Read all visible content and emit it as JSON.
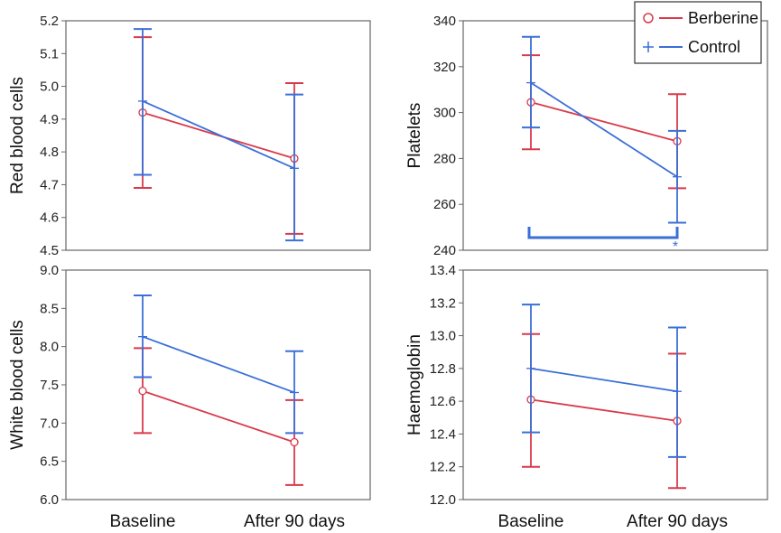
{
  "colors": {
    "berberine": "#d93a4a",
    "control": "#3a6fd8",
    "frame": "#666666"
  },
  "legend": [
    {
      "name": "Berberine",
      "marker": "circle"
    },
    {
      "name": "Control",
      "marker": "plus"
    }
  ],
  "chart_data": [
    {
      "type": "line",
      "id": "rbc",
      "ylabel": "Red blood cells",
      "categories": [
        "Baseline",
        "After 90 days"
      ],
      "ylim": [
        4.5,
        5.2
      ],
      "yticks": [
        "4.5",
        "4.6",
        "4.7",
        "4.8",
        "4.9",
        "5.0",
        "5.1",
        "5.2"
      ],
      "series": [
        {
          "name": "Berberine",
          "values": [
            4.92,
            4.78
          ],
          "lower": [
            4.69,
            4.55
          ],
          "upper": [
            5.15,
            5.01
          ]
        },
        {
          "name": "Control",
          "values": [
            4.955,
            4.75
          ],
          "lower": [
            4.73,
            4.53
          ],
          "upper": [
            5.175,
            4.975
          ]
        }
      ]
    },
    {
      "type": "line",
      "id": "platelets",
      "ylabel": "Platelets",
      "categories": [
        "Baseline",
        "After 90 days"
      ],
      "ylim": [
        240,
        340
      ],
      "yticks": [
        "240",
        "260",
        "280",
        "300",
        "320",
        "340"
      ],
      "series": [
        {
          "name": "Berberine",
          "values": [
            304.5,
            287.5
          ],
          "lower": [
            284,
            267
          ],
          "upper": [
            325,
            308
          ]
        },
        {
          "name": "Control",
          "values": [
            313,
            272
          ],
          "lower": [
            293.5,
            252
          ],
          "upper": [
            333,
            292
          ]
        }
      ],
      "annotation": "*"
    },
    {
      "type": "line",
      "id": "wbc",
      "ylabel": "White blood cells",
      "categories": [
        "Baseline",
        "After 90 days"
      ],
      "ylim": [
        6.0,
        9.0
      ],
      "yticks": [
        "6.0",
        "6.5",
        "7.0",
        "7.5",
        "8.0",
        "8.5",
        "9.0"
      ],
      "series": [
        {
          "name": "Berberine",
          "values": [
            7.42,
            6.75
          ],
          "lower": [
            6.87,
            6.19
          ],
          "upper": [
            7.98,
            7.3
          ]
        },
        {
          "name": "Control",
          "values": [
            8.13,
            7.4
          ],
          "lower": [
            7.6,
            6.87
          ],
          "upper": [
            8.67,
            7.94
          ]
        }
      ]
    },
    {
      "type": "line",
      "id": "haemoglobin",
      "ylabel": "Haemoglobin",
      "categories": [
        "Baseline",
        "After 90 days"
      ],
      "ylim": [
        12.0,
        13.4
      ],
      "yticks": [
        "12.0",
        "12.2",
        "12.4",
        "12.6",
        "12.8",
        "13.0",
        "13.2",
        "13.4"
      ],
      "series": [
        {
          "name": "Berberine",
          "values": [
            12.61,
            12.48
          ],
          "lower": [
            12.2,
            12.07
          ],
          "upper": [
            13.01,
            12.89
          ]
        },
        {
          "name": "Control",
          "values": [
            12.8,
            12.66
          ],
          "lower": [
            12.41,
            12.26
          ],
          "upper": [
            13.19,
            13.05
          ]
        }
      ]
    }
  ]
}
